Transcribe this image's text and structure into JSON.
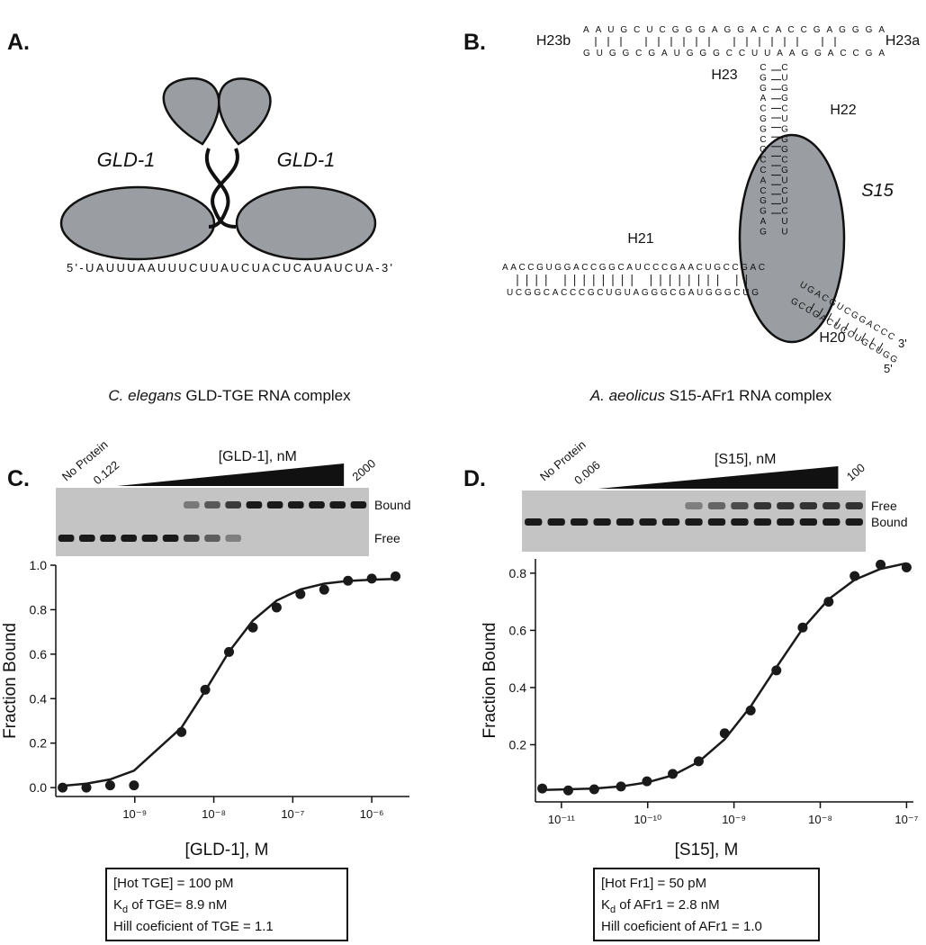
{
  "panel_a": {
    "label": "A.",
    "protein_labels": [
      "GLD-1",
      "GLD-1"
    ],
    "rna_sequence": "5'-UAUUUAAUUUCUUAUCUACUCAUAUCUA-3'",
    "caption": {
      "species": "C. elegans",
      "text": " GLD-TGE RNA complex"
    }
  },
  "panel_b": {
    "label": "B.",
    "protein_label": "S15",
    "helix_labels": [
      "H23b",
      "H23",
      "H23a",
      "H22",
      "H21",
      "H20"
    ],
    "ends": [
      "3'",
      "5'"
    ],
    "strands": [
      "AAUGCUCGGGAGGACACCGAGGGA",
      "GUGGCGAUGGGCCUUAAGGACCGA",
      "CGGACGGCGCCACGGAG",
      "CUGGCUGGGCGUCUCUU",
      "AACCGUGGACCGGCAUCCCGAACUGCCGAC",
      "UCGGCACCCGCUGUAGGGCGAUGGGCUG",
      "UGACGUCGGACCC",
      "GCCGACUCCUGCUGG"
    ],
    "caption": {
      "species": "A. aeolicus",
      "text": " S15-AFr1 RNA complex"
    }
  },
  "chart_data": [
    {
      "type": "scatter",
      "panel_label": "C.",
      "gel": {
        "lane_labels": [
          "No Protein",
          0.122
        ],
        "titration_label": "[GLD-1], nM",
        "max_label": 2000,
        "band_labels": [
          "Bound",
          "Free"
        ]
      },
      "x_label": "[GLD-1], M",
      "y_label": "Fraction Bound",
      "color": "#1a1a1a",
      "log_x": true,
      "x": [
        1.22e-10,
        2.44e-10,
        4.88e-10,
        9.77e-10,
        3.9e-09,
        7.8e-09,
        1.56e-08,
        3.125e-08,
        6.25e-08,
        1.25e-07,
        2.5e-07,
        5e-07,
        1e-06,
        2e-06
      ],
      "values": [
        0.0,
        0.0,
        0.01,
        0.01,
        0.25,
        0.44,
        0.61,
        0.72,
        0.81,
        0.87,
        0.89,
        0.93,
        0.94,
        0.95
      ],
      "fit_x": [
        1.22e-10,
        2.44e-10,
        4.88e-10,
        9.77e-10,
        3.9e-09,
        7.8e-09,
        1.56e-08,
        3.125e-08,
        6.25e-08,
        1.25e-07,
        2.5e-07,
        5e-07,
        1e-06,
        2e-06
      ],
      "fit_values": [
        0.008,
        0.018,
        0.037,
        0.076,
        0.27,
        0.436,
        0.611,
        0.751,
        0.841,
        0.891,
        0.917,
        0.929,
        0.935,
        0.938
      ],
      "xlim": [
        1e-10,
        3e-06
      ],
      "ylim": [
        -0.04,
        1.0
      ],
      "xticks": [
        {
          "value": 1e-09,
          "label": "10⁻⁹"
        },
        {
          "value": 1e-08,
          "label": "10⁻⁸"
        },
        {
          "value": 1e-07,
          "label": "10⁻⁷"
        },
        {
          "value": 1e-06,
          "label": "10⁻⁶"
        }
      ],
      "yticks": [
        {
          "value": 0,
          "label": "0.0"
        },
        0.2,
        0.4,
        0.6,
        0.8,
        {
          "value": 1,
          "label": "1.0"
        }
      ],
      "info_box": [
        {
          "text": "[Hot TGE] = 100 pM"
        },
        {
          "text": "K",
          "sub": "d",
          "rest": " of TGE= 8.9 nM"
        },
        {
          "text": "Hill coeficient of TGE = 1.1"
        }
      ]
    },
    {
      "type": "scatter",
      "panel_label": "D.",
      "gel": {
        "lane_labels": [
          "No Protein",
          0.006
        ],
        "titration_label": "[S15], nM",
        "max_label": 100,
        "band_labels": [
          "Free",
          "Bound"
        ]
      },
      "x_label": "[S15], M",
      "y_label": "Fraction Bound",
      "color": "#1a1a1a",
      "log_x": true,
      "x": [
        6e-12,
        1.2e-11,
        2.4e-11,
        4.9e-11,
        9.8e-11,
        1.95e-10,
        3.9e-10,
        7.8e-10,
        1.56e-09,
        3.1e-09,
        6.25e-09,
        1.25e-08,
        2.5e-08,
        5e-08,
        1e-07
      ],
      "values": [
        0.047,
        0.04,
        0.044,
        0.054,
        0.072,
        0.098,
        0.142,
        0.24,
        0.32,
        0.46,
        0.61,
        0.7,
        0.79,
        0.83,
        0.82
      ],
      "fit_x": [
        6e-12,
        1.2e-11,
        2.4e-11,
        4.9e-11,
        9.8e-11,
        1.95e-10,
        3.9e-10,
        7.8e-10,
        1.56e-09,
        3.1e-09,
        6.25e-09,
        1.25e-08,
        2.5e-08,
        5e-08,
        1e-07
      ],
      "fit_values": [
        0.042,
        0.044,
        0.047,
        0.054,
        0.068,
        0.093,
        0.14,
        0.219,
        0.334,
        0.471,
        0.606,
        0.709,
        0.777,
        0.815,
        0.835
      ],
      "xlim": [
        5e-12,
        1.2e-07
      ],
      "ylim": [
        0,
        0.85
      ],
      "xticks": [
        {
          "value": 1e-11,
          "label": "10⁻¹¹"
        },
        {
          "value": 1e-10,
          "label": "10⁻¹⁰"
        },
        {
          "value": 1e-09,
          "label": "10⁻⁹"
        },
        {
          "value": 1e-08,
          "label": "10⁻⁸"
        },
        {
          "value": 1e-07,
          "label": "10⁻⁷"
        }
      ],
      "yticks": [
        0.2,
        0.4,
        0.6,
        0.8
      ],
      "info_box": [
        {
          "text": "[Hot Fr1] = 50 pM"
        },
        {
          "text": "K",
          "sub": "d",
          "rest": " of AFr1 = 2.8 nM"
        },
        {
          "text": "Hill coeficient of AFr1 = 1.0"
        }
      ]
    }
  ]
}
